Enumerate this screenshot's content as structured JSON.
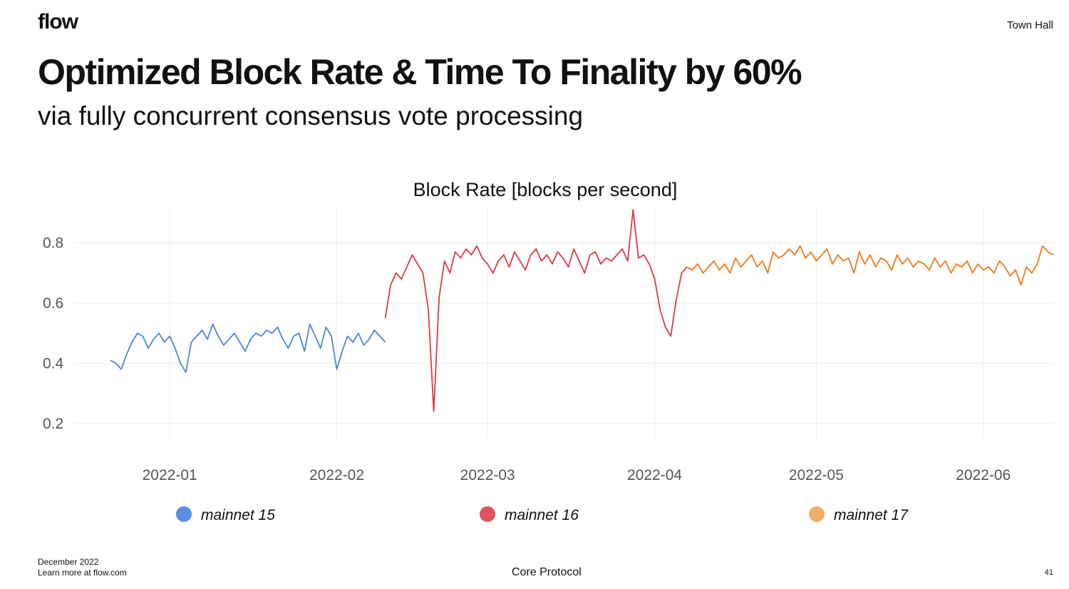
{
  "header": {
    "logo": "flow",
    "top_right": "Town Hall"
  },
  "slide": {
    "title": "Optimized  Block Rate  &  Time To Finality by 60%",
    "subtitle": "via fully concurrent consensus vote processing"
  },
  "footer": {
    "date": "December 2022",
    "link": "Learn more at flow.com",
    "center": "Core Protocol",
    "page": "41"
  },
  "chart_data": {
    "type": "line",
    "title": "Block Rate   [blocks per second]",
    "xlabel": "",
    "ylabel": "",
    "xlim": [
      "2021-12-21",
      "2022-06-14"
    ],
    "ylim": [
      0.15,
      0.92
    ],
    "y_ticks": [
      0.2,
      0.4,
      0.6,
      0.8
    ],
    "x_ticks": [
      "2022-01-01",
      "2022-02-01",
      "2022-03-01",
      "2022-04-01",
      "2022-05-01",
      "2022-06-01"
    ],
    "x_tick_labels": [
      "2022-01",
      "2022-02",
      "2022-03",
      "2022-04",
      "2022-05",
      "2022-06"
    ],
    "grid": true,
    "legend_position": "bottom",
    "series": [
      {
        "name": "mainnet 15",
        "color": "#4a86d8",
        "legend_color": "#5b8fe0",
        "start": "2021-12-21",
        "end": "2022-02-10",
        "points": [
          [
            "2021-12-21",
            0.41
          ],
          [
            "2021-12-22",
            0.4
          ],
          [
            "2021-12-23",
            0.38
          ],
          [
            "2021-12-24",
            0.43
          ],
          [
            "2021-12-25",
            0.47
          ],
          [
            "2021-12-26",
            0.5
          ],
          [
            "2021-12-27",
            0.49
          ],
          [
            "2021-12-28",
            0.45
          ],
          [
            "2021-12-29",
            0.48
          ],
          [
            "2021-12-30",
            0.5
          ],
          [
            "2021-12-31",
            0.47
          ],
          [
            "2022-01-01",
            0.49
          ],
          [
            "2022-01-02",
            0.45
          ],
          [
            "2022-01-03",
            0.4
          ],
          [
            "2022-01-04",
            0.37
          ],
          [
            "2022-01-05",
            0.47
          ],
          [
            "2022-01-06",
            0.49
          ],
          [
            "2022-01-07",
            0.51
          ],
          [
            "2022-01-08",
            0.48
          ],
          [
            "2022-01-09",
            0.53
          ],
          [
            "2022-01-10",
            0.49
          ],
          [
            "2022-01-11",
            0.46
          ],
          [
            "2022-01-12",
            0.48
          ],
          [
            "2022-01-13",
            0.5
          ],
          [
            "2022-01-14",
            0.47
          ],
          [
            "2022-01-15",
            0.44
          ],
          [
            "2022-01-16",
            0.48
          ],
          [
            "2022-01-17",
            0.5
          ],
          [
            "2022-01-18",
            0.49
          ],
          [
            "2022-01-19",
            0.51
          ],
          [
            "2022-01-20",
            0.5
          ],
          [
            "2022-01-21",
            0.52
          ],
          [
            "2022-01-22",
            0.48
          ],
          [
            "2022-01-23",
            0.45
          ],
          [
            "2022-01-24",
            0.49
          ],
          [
            "2022-01-25",
            0.5
          ],
          [
            "2022-01-26",
            0.44
          ],
          [
            "2022-01-27",
            0.53
          ],
          [
            "2022-01-28",
            0.49
          ],
          [
            "2022-01-29",
            0.45
          ],
          [
            "2022-01-30",
            0.52
          ],
          [
            "2022-01-31",
            0.49
          ],
          [
            "2022-02-01",
            0.38
          ],
          [
            "2022-02-02",
            0.44
          ],
          [
            "2022-02-03",
            0.49
          ],
          [
            "2022-02-04",
            0.47
          ],
          [
            "2022-02-05",
            0.5
          ],
          [
            "2022-02-06",
            0.46
          ],
          [
            "2022-02-07",
            0.48
          ],
          [
            "2022-02-08",
            0.51
          ],
          [
            "2022-02-09",
            0.49
          ],
          [
            "2022-02-10",
            0.47
          ]
        ]
      },
      {
        "name": "mainnet 16",
        "color": "#d83a4c",
        "legend_color": "#dd5560",
        "start": "2022-02-10",
        "end": "2022-04-07",
        "points": [
          [
            "2022-02-10",
            0.55
          ],
          [
            "2022-02-11",
            0.66
          ],
          [
            "2022-02-12",
            0.7
          ],
          [
            "2022-02-13",
            0.68
          ],
          [
            "2022-02-14",
            0.72
          ],
          [
            "2022-02-15",
            0.76
          ],
          [
            "2022-02-16",
            0.73
          ],
          [
            "2022-02-17",
            0.7
          ],
          [
            "2022-02-18",
            0.58
          ],
          [
            "2022-02-19",
            0.24
          ],
          [
            "2022-02-20",
            0.62
          ],
          [
            "2022-02-21",
            0.74
          ],
          [
            "2022-02-22",
            0.7
          ],
          [
            "2022-02-23",
            0.77
          ],
          [
            "2022-02-24",
            0.75
          ],
          [
            "2022-02-25",
            0.78
          ],
          [
            "2022-02-26",
            0.76
          ],
          [
            "2022-02-27",
            0.79
          ],
          [
            "2022-02-28",
            0.75
          ],
          [
            "2022-03-01",
            0.73
          ],
          [
            "2022-03-02",
            0.7
          ],
          [
            "2022-03-03",
            0.74
          ],
          [
            "2022-03-04",
            0.76
          ],
          [
            "2022-03-05",
            0.72
          ],
          [
            "2022-03-06",
            0.77
          ],
          [
            "2022-03-07",
            0.74
          ],
          [
            "2022-03-08",
            0.71
          ],
          [
            "2022-03-09",
            0.76
          ],
          [
            "2022-03-10",
            0.78
          ],
          [
            "2022-03-11",
            0.74
          ],
          [
            "2022-03-12",
            0.76
          ],
          [
            "2022-03-13",
            0.73
          ],
          [
            "2022-03-14",
            0.77
          ],
          [
            "2022-03-15",
            0.75
          ],
          [
            "2022-03-16",
            0.72
          ],
          [
            "2022-03-17",
            0.78
          ],
          [
            "2022-03-18",
            0.74
          ],
          [
            "2022-03-19",
            0.7
          ],
          [
            "2022-03-20",
            0.76
          ],
          [
            "2022-03-21",
            0.77
          ],
          [
            "2022-03-22",
            0.73
          ],
          [
            "2022-03-23",
            0.75
          ],
          [
            "2022-03-24",
            0.74
          ],
          [
            "2022-03-25",
            0.76
          ],
          [
            "2022-03-26",
            0.78
          ],
          [
            "2022-03-27",
            0.74
          ],
          [
            "2022-03-28",
            0.91
          ],
          [
            "2022-03-29",
            0.75
          ],
          [
            "2022-03-30",
            0.76
          ],
          [
            "2022-03-31",
            0.73
          ],
          [
            "2022-04-01",
            0.68
          ],
          [
            "2022-04-02",
            0.58
          ],
          [
            "2022-04-03",
            0.52
          ],
          [
            "2022-04-04",
            0.49
          ],
          [
            "2022-04-05",
            0.61
          ],
          [
            "2022-04-06",
            0.7
          ],
          [
            "2022-04-07",
            0.72
          ]
        ]
      },
      {
        "name": "mainnet 17",
        "color": "#f07a1a",
        "legend_color": "#f2ad68",
        "start": "2022-04-07",
        "end": "2022-06-14",
        "points": [
          [
            "2022-04-07",
            0.72
          ],
          [
            "2022-04-08",
            0.71
          ],
          [
            "2022-04-09",
            0.73
          ],
          [
            "2022-04-10",
            0.7
          ],
          [
            "2022-04-11",
            0.72
          ],
          [
            "2022-04-12",
            0.74
          ],
          [
            "2022-04-13",
            0.71
          ],
          [
            "2022-04-14",
            0.73
          ],
          [
            "2022-04-15",
            0.7
          ],
          [
            "2022-04-16",
            0.75
          ],
          [
            "2022-04-17",
            0.72
          ],
          [
            "2022-04-18",
            0.74
          ],
          [
            "2022-04-19",
            0.76
          ],
          [
            "2022-04-20",
            0.72
          ],
          [
            "2022-04-21",
            0.74
          ],
          [
            "2022-04-22",
            0.7
          ],
          [
            "2022-04-23",
            0.77
          ],
          [
            "2022-04-24",
            0.75
          ],
          [
            "2022-04-25",
            0.76
          ],
          [
            "2022-04-26",
            0.78
          ],
          [
            "2022-04-27",
            0.76
          ],
          [
            "2022-04-28",
            0.79
          ],
          [
            "2022-04-29",
            0.75
          ],
          [
            "2022-04-30",
            0.77
          ],
          [
            "2022-05-01",
            0.74
          ],
          [
            "2022-05-02",
            0.76
          ],
          [
            "2022-05-03",
            0.78
          ],
          [
            "2022-05-04",
            0.73
          ],
          [
            "2022-05-05",
            0.76
          ],
          [
            "2022-05-06",
            0.74
          ],
          [
            "2022-05-07",
            0.75
          ],
          [
            "2022-05-08",
            0.7
          ],
          [
            "2022-05-09",
            0.77
          ],
          [
            "2022-05-10",
            0.73
          ],
          [
            "2022-05-11",
            0.76
          ],
          [
            "2022-05-12",
            0.72
          ],
          [
            "2022-05-13",
            0.75
          ],
          [
            "2022-05-14",
            0.74
          ],
          [
            "2022-05-15",
            0.71
          ],
          [
            "2022-05-16",
            0.76
          ],
          [
            "2022-05-17",
            0.73
          ],
          [
            "2022-05-18",
            0.75
          ],
          [
            "2022-05-19",
            0.72
          ],
          [
            "2022-05-20",
            0.74
          ],
          [
            "2022-05-21",
            0.73
          ],
          [
            "2022-05-22",
            0.71
          ],
          [
            "2022-05-23",
            0.75
          ],
          [
            "2022-05-24",
            0.72
          ],
          [
            "2022-05-25",
            0.74
          ],
          [
            "2022-05-26",
            0.7
          ],
          [
            "2022-05-27",
            0.73
          ],
          [
            "2022-05-28",
            0.72
          ],
          [
            "2022-05-29",
            0.74
          ],
          [
            "2022-05-30",
            0.7
          ],
          [
            "2022-05-31",
            0.73
          ],
          [
            "2022-06-01",
            0.71
          ],
          [
            "2022-06-02",
            0.72
          ],
          [
            "2022-06-03",
            0.7
          ],
          [
            "2022-06-04",
            0.74
          ],
          [
            "2022-06-05",
            0.72
          ],
          [
            "2022-06-06",
            0.69
          ],
          [
            "2022-06-07",
            0.71
          ],
          [
            "2022-06-08",
            0.66
          ],
          [
            "2022-06-09",
            0.72
          ],
          [
            "2022-06-10",
            0.7
          ],
          [
            "2022-06-11",
            0.73
          ],
          [
            "2022-06-12",
            0.79
          ],
          [
            "2022-06-13",
            0.77
          ],
          [
            "2022-06-14",
            0.76
          ]
        ]
      }
    ]
  }
}
